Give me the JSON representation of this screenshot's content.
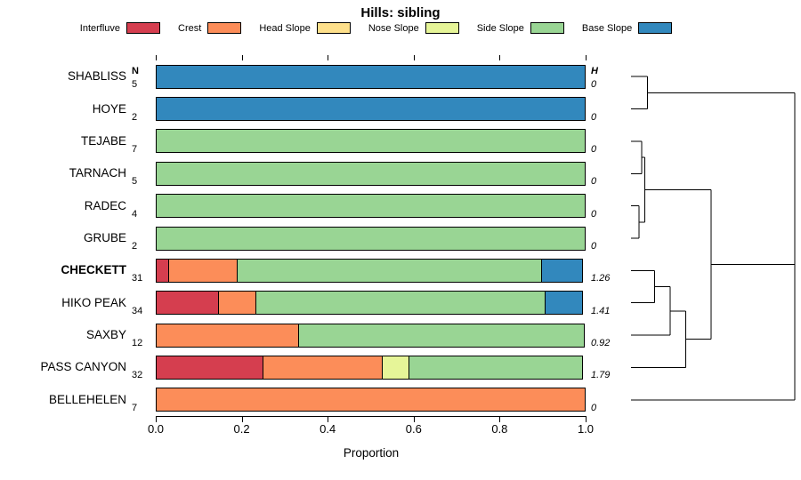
{
  "title": "Hills: sibling",
  "col_headers": {
    "n": "N",
    "h": "H"
  },
  "axis": {
    "label": "Proportion",
    "ticks": [
      "0.0",
      "0.2",
      "0.4",
      "0.6",
      "0.8",
      "1.0"
    ],
    "min": 0,
    "max": 1
  },
  "legend": [
    {
      "label": "Interfluve",
      "color": "#d53e4f"
    },
    {
      "label": "Crest",
      "color": "#fc8d59"
    },
    {
      "label": "Head Slope",
      "color": "#fee08b"
    },
    {
      "label": "Nose Slope",
      "color": "#e6f598"
    },
    {
      "label": "Side Slope",
      "color": "#99d594"
    },
    {
      "label": "Base Slope",
      "color": "#3288bd"
    }
  ],
  "chart_data": {
    "type": "bar",
    "stacked": true,
    "orientation": "horizontal",
    "xlabel": "Proportion",
    "xlim": [
      0,
      1
    ],
    "rows": [
      {
        "label": "SHABLISS",
        "bold": false,
        "n": 5,
        "h": "0",
        "segments": [
          {
            "name": "Base Slope",
            "value": 1.0
          }
        ]
      },
      {
        "label": "HOYE",
        "bold": false,
        "n": 2,
        "h": "0",
        "segments": [
          {
            "name": "Base Slope",
            "value": 1.0
          }
        ]
      },
      {
        "label": "TEJABE",
        "bold": false,
        "n": 7,
        "h": "0",
        "segments": [
          {
            "name": "Side Slope",
            "value": 1.0
          }
        ]
      },
      {
        "label": "TARNACH",
        "bold": false,
        "n": 5,
        "h": "0",
        "segments": [
          {
            "name": "Side Slope",
            "value": 1.0
          }
        ]
      },
      {
        "label": "RADEC",
        "bold": false,
        "n": 4,
        "h": "0",
        "segments": [
          {
            "name": "Side Slope",
            "value": 1.0
          }
        ]
      },
      {
        "label": "GRUBE",
        "bold": false,
        "n": 2,
        "h": "0",
        "segments": [
          {
            "name": "Side Slope",
            "value": 1.0
          }
        ]
      },
      {
        "label": "CHECKETT",
        "bold": true,
        "n": 31,
        "h": "1.26",
        "segments": [
          {
            "name": "Interfluve",
            "value": 0.032
          },
          {
            "name": "Crest",
            "value": 0.161
          },
          {
            "name": "Side Slope",
            "value": 0.71
          },
          {
            "name": "Base Slope",
            "value": 0.097
          }
        ]
      },
      {
        "label": "HIKO PEAK",
        "bold": false,
        "n": 34,
        "h": "1.41",
        "segments": [
          {
            "name": "Interfluve",
            "value": 0.147
          },
          {
            "name": "Crest",
            "value": 0.088
          },
          {
            "name": "Side Slope",
            "value": 0.677
          },
          {
            "name": "Base Slope",
            "value": 0.088
          }
        ]
      },
      {
        "label": "SAXBY",
        "bold": false,
        "n": 12,
        "h": "0.92",
        "segments": [
          {
            "name": "Crest",
            "value": 0.333
          },
          {
            "name": "Side Slope",
            "value": 0.667
          }
        ]
      },
      {
        "label": "PASS CANYON",
        "bold": false,
        "n": 32,
        "h": "1.79",
        "segments": [
          {
            "name": "Interfluve",
            "value": 0.25
          },
          {
            "name": "Crest",
            "value": 0.281
          },
          {
            "name": "Nose Slope",
            "value": 0.063
          },
          {
            "name": "Side Slope",
            "value": 0.406
          }
        ]
      },
      {
        "label": "BELLEHELEN",
        "bold": false,
        "n": 7,
        "h": "0",
        "segments": [
          {
            "name": "Crest",
            "value": 1.0
          }
        ]
      }
    ],
    "dendrogram": {
      "note": "heights normalized 0-1; refs #k = result of k-th merge (1-based)",
      "merges": [
        {
          "a": "SHABLISS",
          "b": "HOYE",
          "height": 0.1
        },
        {
          "a": "TEJABE",
          "b": "TARNACH",
          "height": 0.065
        },
        {
          "a": "RADEC",
          "b": "GRUBE",
          "height": 0.05
        },
        {
          "a": "#2",
          "b": "#3",
          "height": 0.085
        },
        {
          "a": "CHECKETT",
          "b": "HIKO PEAK",
          "height": 0.145
        },
        {
          "a": "#5",
          "b": "SAXBY",
          "height": 0.24
        },
        {
          "a": "#6",
          "b": "PASS CANYON",
          "height": 0.335
        },
        {
          "a": "#4",
          "b": "#7",
          "height": 0.49
        },
        {
          "a": "#1",
          "b": "#8",
          "height": 1.0
        },
        {
          "a": "#9",
          "b": "BELLEHELEN",
          "height": 1.0
        }
      ]
    }
  }
}
